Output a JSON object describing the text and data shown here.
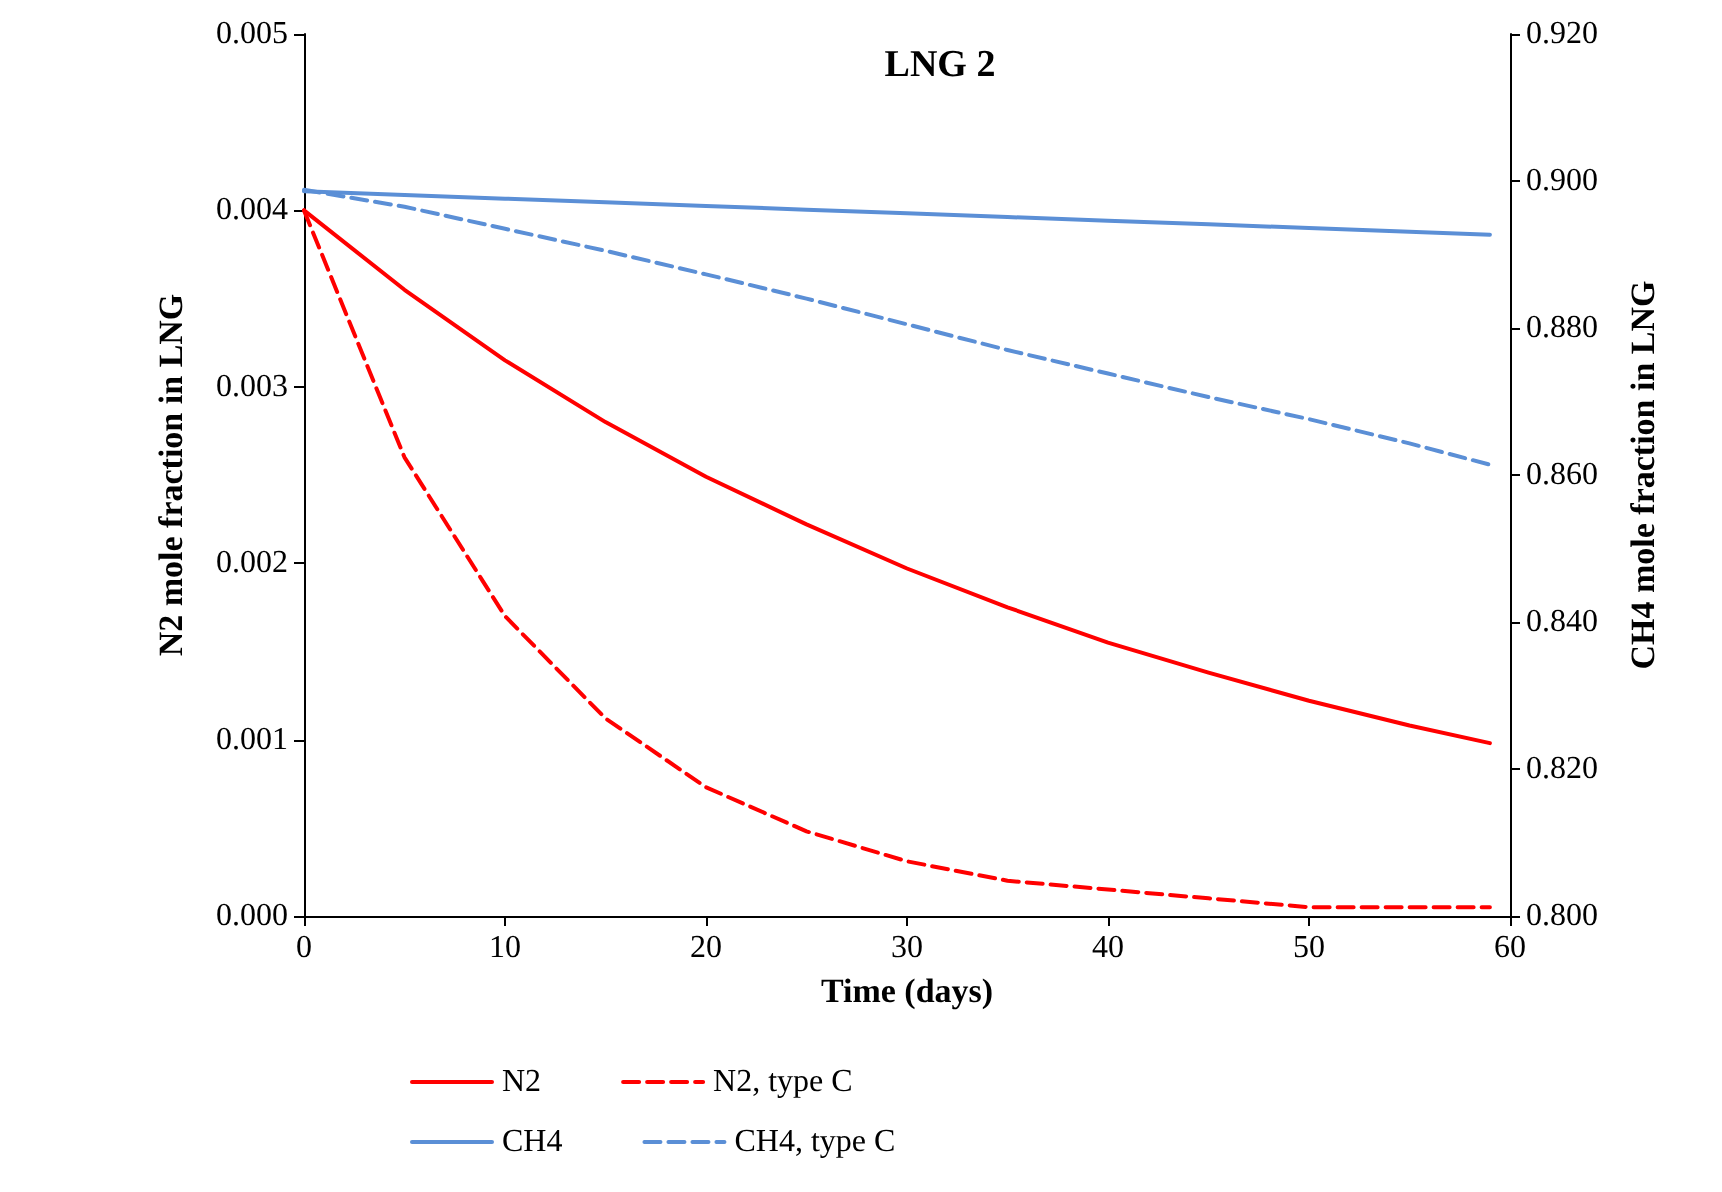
{
  "chart_data": {
    "type": "line",
    "title": "LNG 2",
    "xlabel": "Time (days)",
    "ylabel": "N2 mole fraction in LNG",
    "y2label": "CH4 mole fraction in LNG",
    "x": [
      0,
      5,
      10,
      15,
      20,
      25,
      30,
      35,
      40,
      45,
      50,
      55,
      59
    ],
    "series": [
      {
        "name": "N2",
        "color": "#ff0000",
        "line_style": "solid",
        "values": [
          0.004,
          0.00355,
          0.00315,
          0.0028,
          0.00249,
          0.00222,
          0.00197,
          0.00175,
          0.00155,
          0.00138,
          0.00122,
          0.00108,
          0.00098
        ]
      },
      {
        "name": "N2, type C",
        "color": "#ff0000",
        "line_style": "dashed",
        "values": [
          0.004,
          0.0026,
          0.0017,
          0.00112,
          0.00073,
          0.00048,
          0.00031,
          0.0002,
          0.00015,
          0.0001,
          5e-05,
          5e-05,
          5e-05
        ]
      },
      {
        "name": "CH4",
        "color": "#5b8fd6",
        "line_style": "solid",
        "axis": "y2",
        "values": [
          0.8986,
          0.8981,
          0.8976,
          0.8971,
          0.8966,
          0.8961,
          0.8956,
          0.8951,
          0.8946,
          0.8941,
          0.8936,
          0.8931,
          0.8927
        ]
      },
      {
        "name": "CH4, type C",
        "color": "#5b8fd6",
        "line_style": "dashed",
        "axis": "y2",
        "values": [
          0.8988,
          0.8965,
          0.8935,
          0.8905,
          0.8873,
          0.884,
          0.8805,
          0.877,
          0.8738,
          0.8706,
          0.8676,
          0.8643,
          0.8614
        ]
      }
    ],
    "xlim": [
      0,
      60
    ],
    "xticks": [
      0,
      10,
      20,
      30,
      40,
      50,
      60
    ],
    "ylim": [
      0,
      0.005
    ],
    "yticks": [
      {
        "value": 0,
        "label": "0.000"
      },
      {
        "value": 0.001,
        "label": "0.001"
      },
      {
        "value": 0.002,
        "label": "0.002"
      },
      {
        "value": 0.003,
        "label": "0.003"
      },
      {
        "value": 0.004,
        "label": "0.004"
      },
      {
        "value": 0.005,
        "label": "0.005"
      }
    ],
    "y2lim": [
      0.8,
      0.92
    ],
    "y2ticks": [
      {
        "value": 0.8,
        "label": "0.800"
      },
      {
        "value": 0.82,
        "label": "0.820"
      },
      {
        "value": 0.84,
        "label": "0.840"
      },
      {
        "value": 0.86,
        "label": "0.860"
      },
      {
        "value": 0.88,
        "label": "0.880"
      },
      {
        "value": 0.9,
        "label": "0.900"
      },
      {
        "value": 0.92,
        "label": "0.920"
      }
    ],
    "legend": "bottom",
    "grid": false,
    "marker": "none"
  }
}
